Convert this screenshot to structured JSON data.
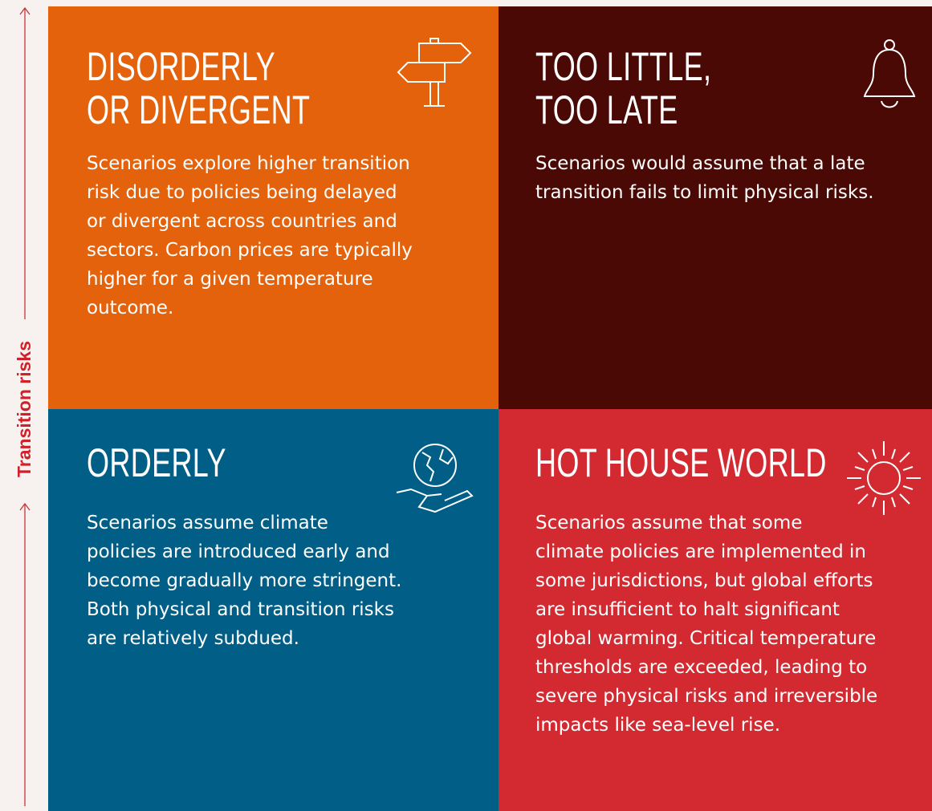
{
  "axis_label": "Transition risks",
  "quadrants": [
    {
      "title": [
        "DISORDERLY",
        "OR DIVERGENT"
      ],
      "body": [
        "Scenarios explore higher transition",
        "risk due to policies being delayed",
        "or divergent across countries and",
        "sectors. Carbon prices are typically",
        "higher for a given temperature",
        "outcome."
      ]
    },
    {
      "title": [
        "TOO LITTLE,",
        "TOO LATE"
      ],
      "body": [
        "Scenarios would assume that a late",
        "transition fails to limit physical risks."
      ]
    },
    {
      "title": [
        "ORDERLY"
      ],
      "body": [
        "Scenarios assume climate",
        "policies are introduced early and",
        "become gradually more stringent.",
        "Both physical and transition risks",
        "are relatively subdued."
      ]
    },
    {
      "title": [
        "HOT HOUSE WORLD"
      ],
      "body": [
        "Scenarios assume that some",
        "climate policies are implemented in",
        "some jurisdictions, but global efforts",
        "are insufficient to halt significant",
        "global warming. Critical temperature",
        "thresholds are exceeded, leading to",
        "severe physical risks and irreversible",
        "impacts like sea-level rise."
      ]
    }
  ]
}
